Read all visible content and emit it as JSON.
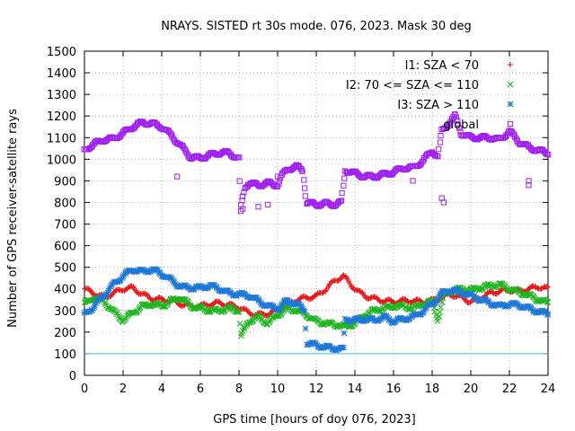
{
  "chart_data": {
    "type": "scatter",
    "title": "NRAYS. SISTED rt 30s mode. 076, 2023. Mask 30 deg",
    "xlabel": "GPS time [hours of doy 076, 2023]",
    "ylabel": "Number of GPS receiver-satellite rays",
    "xlim": [
      0,
      24
    ],
    "ylim": [
      0,
      1500
    ],
    "xticks": [
      0,
      2,
      4,
      6,
      8,
      10,
      12,
      14,
      16,
      18,
      20,
      22,
      24
    ],
    "yticks": [
      0,
      100,
      200,
      300,
      400,
      500,
      600,
      700,
      800,
      900,
      1000,
      1100,
      1200,
      1300,
      1400,
      1500
    ],
    "grid": true,
    "legend_position": "top-right",
    "threshold_line": {
      "y": 100,
      "color": "#36c8d8"
    },
    "series": [
      {
        "name": "I1: SZA < 70",
        "marker": "+",
        "color": "#e41a1c",
        "points": [
          [
            0,
            400
          ],
          [
            0.5,
            380
          ],
          [
            1,
            360
          ],
          [
            1.5,
            380
          ],
          [
            2,
            400
          ],
          [
            2.5,
            405
          ],
          [
            3,
            375
          ],
          [
            3.5,
            355
          ],
          [
            4,
            350
          ],
          [
            4.5,
            345
          ],
          [
            5,
            330
          ],
          [
            5.5,
            320
          ],
          [
            6,
            320
          ],
          [
            6.5,
            330
          ],
          [
            7,
            335
          ],
          [
            7.5,
            325
          ],
          [
            8,
            315
          ],
          [
            8.5,
            290
          ],
          [
            9,
            280
          ],
          [
            9.5,
            285
          ],
          [
            10,
            300
          ],
          [
            10.5,
            330
          ],
          [
            11,
            350
          ],
          [
            11.5,
            360
          ],
          [
            12,
            365
          ],
          [
            12.5,
            400
          ],
          [
            13,
            440
          ],
          [
            13.4,
            460
          ],
          [
            13.8,
            420
          ],
          [
            14.2,
            385
          ],
          [
            14.6,
            365
          ],
          [
            15,
            355
          ],
          [
            15.5,
            345
          ],
          [
            16,
            340
          ],
          [
            16.5,
            345
          ],
          [
            17,
            345
          ],
          [
            17.5,
            340
          ],
          [
            18,
            345
          ],
          [
            18.5,
            360
          ],
          [
            19,
            375
          ],
          [
            19.5,
            360
          ],
          [
            20,
            340
          ],
          [
            20.5,
            360
          ],
          [
            21,
            380
          ],
          [
            21.5,
            390
          ],
          [
            22,
            395
          ],
          [
            22.5,
            390
          ],
          [
            23,
            400
          ],
          [
            23.5,
            410
          ],
          [
            24,
            400
          ]
        ]
      },
      {
        "name": "I2: 70 <= SZA <= 110",
        "marker": "x",
        "color": "#1fb51f",
        "points": [
          [
            0,
            330
          ],
          [
            0.5,
            360
          ],
          [
            1,
            345
          ],
          [
            1.5,
            295
          ],
          [
            2,
            255
          ],
          [
            2.5,
            290
          ],
          [
            3,
            320
          ],
          [
            3.5,
            330
          ],
          [
            4,
            320
          ],
          [
            4.5,
            345
          ],
          [
            5,
            360
          ],
          [
            5.5,
            320
          ],
          [
            6,
            310
          ],
          [
            6.5,
            300
          ],
          [
            7,
            300
          ],
          [
            7.5,
            310
          ],
          [
            8,
            300
          ],
          [
            8.1,
            180
          ],
          [
            8.5,
            250
          ],
          [
            9,
            270
          ],
          [
            9.5,
            240
          ],
          [
            10,
            280
          ],
          [
            10.5,
            310
          ],
          [
            11,
            300
          ],
          [
            11.5,
            280
          ],
          [
            12,
            250
          ],
          [
            12.5,
            240
          ],
          [
            13,
            235
          ],
          [
            13.5,
            225
          ],
          [
            14,
            240
          ],
          [
            14.5,
            280
          ],
          [
            15,
            300
          ],
          [
            15.5,
            310
          ],
          [
            16,
            320
          ],
          [
            16.5,
            320
          ],
          [
            17,
            310
          ],
          [
            17.5,
            330
          ],
          [
            18,
            340
          ],
          [
            18.3,
            260
          ],
          [
            18.6,
            370
          ],
          [
            19,
            390
          ],
          [
            19.5,
            400
          ],
          [
            20,
            395
          ],
          [
            20.5,
            405
          ],
          [
            21,
            415
          ],
          [
            21.5,
            420
          ],
          [
            22,
            400
          ],
          [
            22.5,
            385
          ],
          [
            23,
            370
          ],
          [
            23.5,
            350
          ],
          [
            24,
            335
          ]
        ]
      },
      {
        "name": "I3: SZA > 110",
        "marker": "*",
        "color": "#1e78d7",
        "points": [
          [
            0,
            280
          ],
          [
            0.5,
            320
          ],
          [
            1,
            370
          ],
          [
            1.5,
            420
          ],
          [
            2,
            460
          ],
          [
            2.5,
            490
          ],
          [
            3,
            480
          ],
          [
            3.5,
            490
          ],
          [
            4,
            470
          ],
          [
            4.5,
            440
          ],
          [
            5,
            410
          ],
          [
            5.5,
            405
          ],
          [
            6,
            405
          ],
          [
            6.5,
            415
          ],
          [
            7,
            400
          ],
          [
            7.5,
            380
          ],
          [
            8,
            375
          ],
          [
            8.5,
            370
          ],
          [
            9,
            345
          ],
          [
            9.5,
            320
          ],
          [
            10,
            310
          ],
          [
            10.5,
            345
          ],
          [
            11,
            330
          ],
          [
            11.4,
            300
          ],
          [
            11.5,
            150
          ],
          [
            12,
            140
          ],
          [
            12.5,
            130
          ],
          [
            13,
            125
          ],
          [
            13.4,
            120
          ],
          [
            13.5,
            260
          ],
          [
            14,
            255
          ],
          [
            14.5,
            260
          ],
          [
            15,
            255
          ],
          [
            15.5,
            270
          ],
          [
            16,
            250
          ],
          [
            16.5,
            260
          ],
          [
            17,
            270
          ],
          [
            17.5,
            295
          ],
          [
            18,
            330
          ],
          [
            18.5,
            380
          ],
          [
            19,
            395
          ],
          [
            19.5,
            385
          ],
          [
            20,
            370
          ],
          [
            20.5,
            350
          ],
          [
            21,
            335
          ],
          [
            21.5,
            320
          ],
          [
            22,
            330
          ],
          [
            22.5,
            325
          ],
          [
            23,
            310
          ],
          [
            23.5,
            295
          ],
          [
            24,
            285
          ]
        ]
      },
      {
        "name": "global",
        "marker": "square",
        "color": "#a020f0",
        "points": [
          [
            0,
            1040
          ],
          [
            0.3,
            1060
          ],
          [
            0.6,
            1075
          ],
          [
            1,
            1090
          ],
          [
            1.5,
            1095
          ],
          [
            2,
            1120
          ],
          [
            2.5,
            1150
          ],
          [
            3,
            1170
          ],
          [
            3.5,
            1165
          ],
          [
            4,
            1150
          ],
          [
            4.5,
            1110
          ],
          [
            5,
            1060
          ],
          [
            5.5,
            1010
          ],
          [
            6,
            1005
          ],
          [
            6.5,
            1020
          ],
          [
            7,
            1030
          ],
          [
            7.5,
            1030
          ],
          [
            8,
            1000
          ],
          [
            8.1,
            780
          ],
          [
            8.3,
            870
          ],
          [
            8.5,
            890
          ],
          [
            9,
            880
          ],
          [
            9.5,
            890
          ],
          [
            10,
            880
          ],
          [
            10.2,
            920
          ],
          [
            10.5,
            955
          ],
          [
            11,
            965
          ],
          [
            11.3,
            950
          ],
          [
            11.5,
            800
          ],
          [
            12,
            790
          ],
          [
            12.5,
            795
          ],
          [
            13,
            790
          ],
          [
            13.3,
            800
          ],
          [
            13.5,
            950
          ],
          [
            14,
            935
          ],
          [
            14.5,
            920
          ],
          [
            15,
            920
          ],
          [
            15.5,
            930
          ],
          [
            16,
            940
          ],
          [
            16.5,
            960
          ],
          [
            17,
            960
          ],
          [
            17.5,
            990
          ],
          [
            18,
            1040
          ],
          [
            18.3,
            1010
          ],
          [
            18.5,
            1130
          ],
          [
            19,
            1180
          ],
          [
            19.2,
            1200
          ],
          [
            19.5,
            1120
          ],
          [
            20,
            1100
          ],
          [
            20.5,
            1100
          ],
          [
            21,
            1100
          ],
          [
            21.5,
            1090
          ],
          [
            22,
            1130
          ],
          [
            22.5,
            1080
          ],
          [
            23,
            1055
          ],
          [
            23.5,
            1040
          ],
          [
            24,
            1030
          ]
        ],
        "outliers": [
          [
            4.8,
            920
          ],
          [
            8.1,
            760
          ],
          [
            8.2,
            770
          ],
          [
            9,
            780
          ],
          [
            9.5,
            790
          ],
          [
            10,
            920
          ],
          [
            17,
            900
          ],
          [
            18.5,
            820
          ],
          [
            18.6,
            800
          ],
          [
            23,
            900
          ],
          [
            23,
            880
          ]
        ]
      }
    ]
  }
}
